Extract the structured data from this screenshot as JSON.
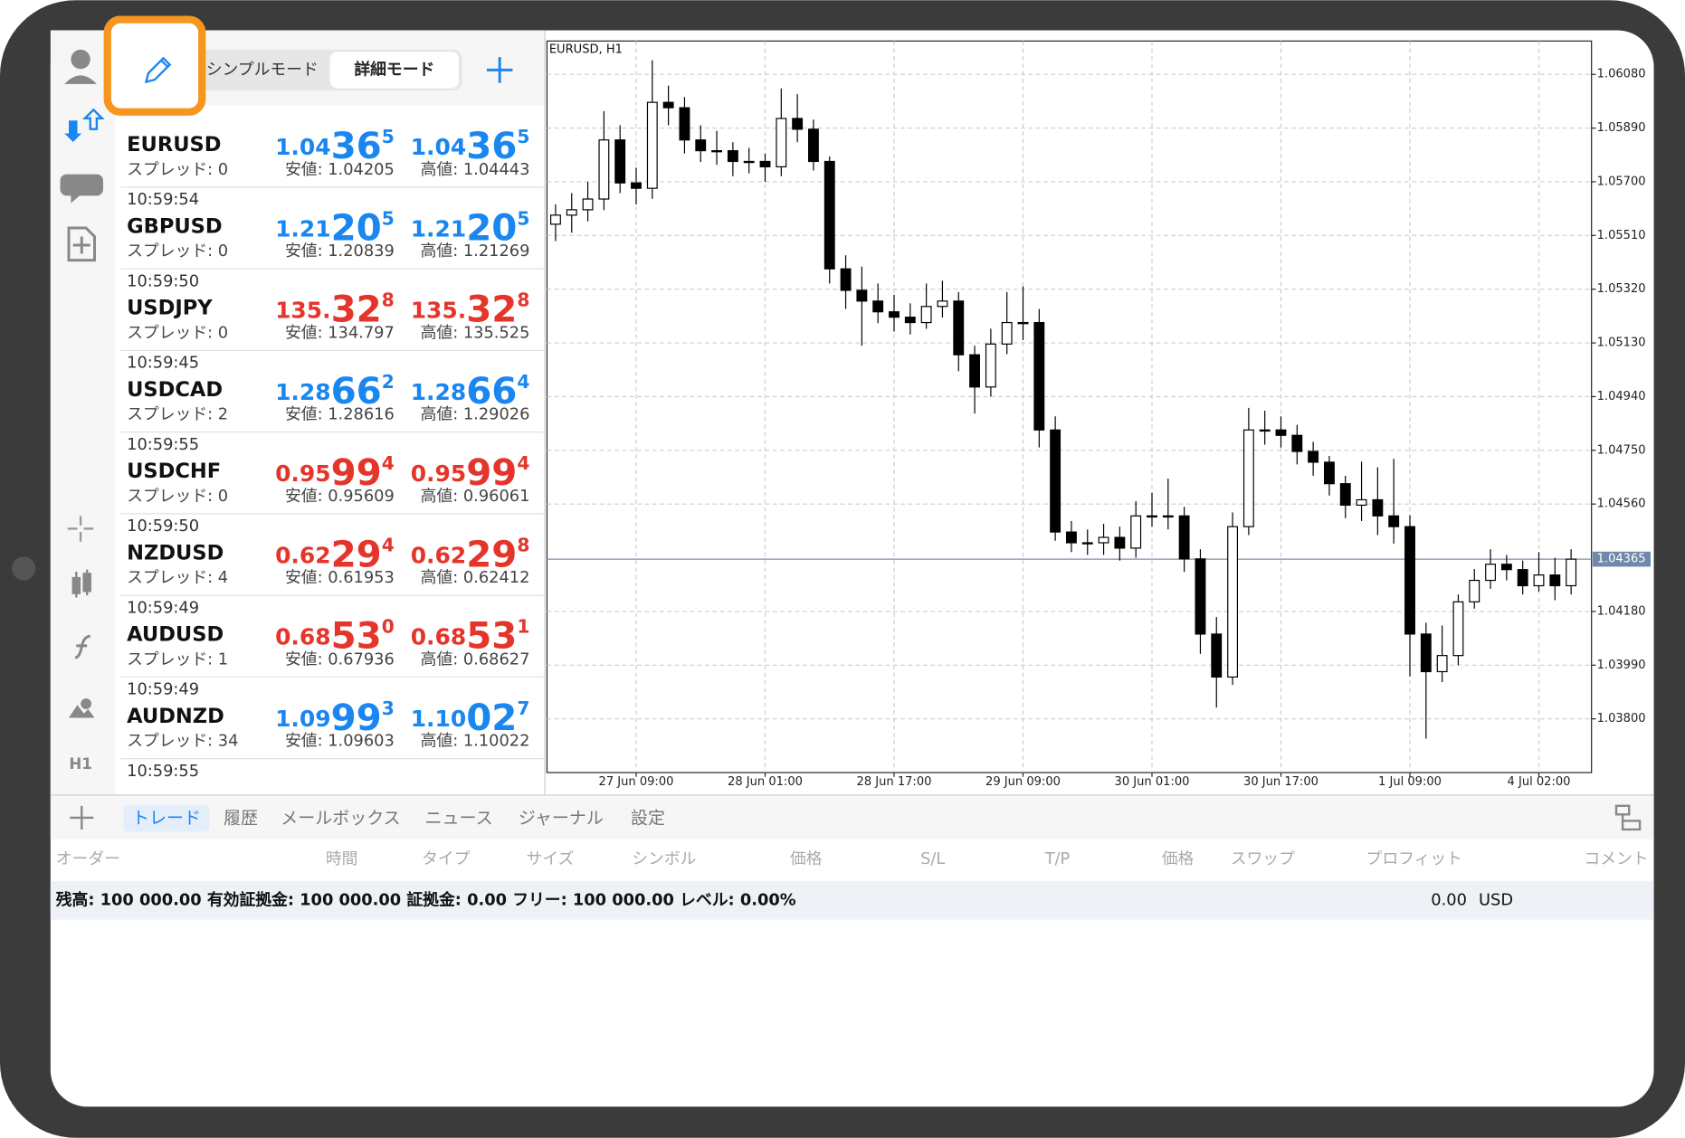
{
  "toolbar": {
    "modes": [
      "シンプルモード",
      "詳細モード"
    ]
  },
  "sidebar": {
    "timeframe": "H1"
  },
  "quotes": {
    "rows": [
      {
        "symbol": "EURUSD",
        "spread": "スプレッド: 0",
        "color": "#1a86f0",
        "bid": {
          "prefix": "1.04",
          "big": "36",
          "pip": "5"
        },
        "ask": {
          "prefix": "1.04",
          "big": "36",
          "pip": "5"
        },
        "low": "安値: 1.04205",
        "high": "高値: 1.04443"
      },
      {
        "time": "10:59:54",
        "symbol": "GBPUSD",
        "spread": "スプレッド: 0",
        "color": "#1a86f0",
        "bid": {
          "prefix": "1.21",
          "big": "20",
          "pip": "5"
        },
        "ask": {
          "prefix": "1.21",
          "big": "20",
          "pip": "5"
        },
        "low": "安値: 1.20839",
        "high": "高値: 1.21269"
      },
      {
        "time": "10:59:50",
        "symbol": "USDJPY",
        "spread": "スプレッド: 0",
        "color": "#e5352b",
        "bid": {
          "prefix": "135.",
          "big": "32",
          "pip": "8"
        },
        "ask": {
          "prefix": "135.",
          "big": "32",
          "pip": "8"
        },
        "low": "安値: 134.797",
        "high": "高値: 135.525"
      },
      {
        "time": "10:59:45",
        "symbol": "USDCAD",
        "spread": "スプレッド: 2",
        "color": "#1a86f0",
        "bid": {
          "prefix": "1.28",
          "big": "66",
          "pip": "2"
        },
        "ask": {
          "prefix": "1.28",
          "big": "66",
          "pip": "4"
        },
        "low": "安値: 1.28616",
        "high": "高値: 1.29026"
      },
      {
        "time": "10:59:55",
        "symbol": "USDCHF",
        "spread": "スプレッド: 0",
        "color": "#e5352b",
        "bid": {
          "prefix": "0.95",
          "big": "99",
          "pip": "4"
        },
        "ask": {
          "prefix": "0.95",
          "big": "99",
          "pip": "4"
        },
        "low": "安値: 0.95609",
        "high": "高値: 0.96061"
      },
      {
        "time": "10:59:50",
        "symbol": "NZDUSD",
        "spread": "スプレッド: 4",
        "color": "#e5352b",
        "bid": {
          "prefix": "0.62",
          "big": "29",
          "pip": "4"
        },
        "ask": {
          "prefix": "0.62",
          "big": "29",
          "pip": "8"
        },
        "low": "安値: 0.61953",
        "high": "高値: 0.62412"
      },
      {
        "time": "10:59:49",
        "symbol": "AUDUSD",
        "spread": "スプレッド: 1",
        "color": "#e5352b",
        "bid": {
          "prefix": "0.68",
          "big": "53",
          "pip": "0"
        },
        "ask": {
          "prefix": "0.68",
          "big": "53",
          "pip": "1"
        },
        "low": "安値: 0.67936",
        "high": "高値: 0.68627"
      },
      {
        "time": "10:59:49",
        "symbol": "AUDNZD",
        "spread": "スプレッド: 34",
        "color": "#1a86f0",
        "bid": {
          "prefix": "1.09",
          "big": "99",
          "pip": "3"
        },
        "ask": {
          "prefix": "1.10",
          "big": "02",
          "pip": "7"
        },
        "low": "安値: 1.09603",
        "high": "高値: 1.10022"
      },
      {
        "time": "10:59:55"
      }
    ]
  },
  "chart_data": {
    "type": "candlestick",
    "title": "EURUSD, H1",
    "up_color": "#ffffff",
    "down_color": "#000000",
    "grid": true,
    "ylim": [
      1.0361,
      1.06198
    ],
    "yticks": [
      {
        "value": 1.038,
        "label": "1.03800"
      },
      {
        "value": 1.0399,
        "label": "1.03990"
      },
      {
        "value": 1.0418,
        "label": "1.04180"
      },
      {
        "value": 1.0456,
        "label": "1.04560"
      },
      {
        "value": 1.0475,
        "label": "1.04750"
      },
      {
        "value": 1.0494,
        "label": "1.04940"
      },
      {
        "value": 1.0513,
        "label": "1.05130"
      },
      {
        "value": 1.0532,
        "label": "1.05320"
      },
      {
        "value": 1.0551,
        "label": "1.05510"
      },
      {
        "value": 1.057,
        "label": "1.05700"
      },
      {
        "value": 1.0589,
        "label": "1.05890"
      },
      {
        "value": 1.0608,
        "label": "1.06080"
      }
    ],
    "current_price": {
      "value": 1.04365,
      "label": "1.04365"
    },
    "categories": [
      null,
      null,
      null,
      null,
      null,
      "27 Jun 09:00",
      null,
      null,
      null,
      null,
      null,
      null,
      null,
      "28 Jun 01:00",
      null,
      null,
      null,
      null,
      null,
      null,
      null,
      "28 Jun 17:00",
      null,
      null,
      null,
      null,
      null,
      null,
      null,
      "29 Jun 09:00",
      null,
      null,
      null,
      null,
      null,
      null,
      null,
      "30 Jun 01:00",
      null,
      null,
      null,
      null,
      null,
      null,
      null,
      "30 Jun 17:00",
      null,
      null,
      null,
      null,
      null,
      null,
      null,
      "1 Jul 09:00",
      null,
      null,
      null,
      null,
      null,
      null,
      null,
      "4 Jul 02:00",
      null,
      null
    ],
    "ohlc": [
      [
        1.0555,
        1.0562,
        1.0549,
        1.05582
      ],
      [
        1.05582,
        1.0566,
        1.0552,
        1.05601
      ],
      [
        1.05601,
        1.057,
        1.0556,
        1.05639
      ],
      [
        1.05639,
        1.0595,
        1.056,
        1.05848
      ],
      [
        1.05848,
        1.059,
        1.0566,
        1.05696
      ],
      [
        1.05696,
        1.0575,
        1.0562,
        1.05677
      ],
      [
        1.05677,
        1.0613,
        1.0564,
        1.05981
      ],
      [
        1.05981,
        1.0604,
        1.059,
        1.05962
      ],
      [
        1.05962,
        1.06,
        1.058,
        1.05848
      ],
      [
        1.05848,
        1.059,
        1.0577,
        1.0581
      ],
      [
        1.0581,
        1.0588,
        1.0576,
        1.0581
      ],
      [
        1.0581,
        1.0584,
        1.0572,
        1.05772
      ],
      [
        1.05772,
        1.0582,
        1.0573,
        1.05772
      ],
      [
        1.05772,
        1.058,
        1.057,
        1.05753
      ],
      [
        1.05753,
        1.0603,
        1.0572,
        1.05924
      ],
      [
        1.05924,
        1.0601,
        1.0584,
        1.05886
      ],
      [
        1.05886,
        1.0592,
        1.0574,
        1.05772
      ],
      [
        1.05772,
        1.0579,
        1.0534,
        1.05392
      ],
      [
        1.05392,
        1.0544,
        1.0525,
        1.05316
      ],
      [
        1.05316,
        1.054,
        1.0512,
        1.05278
      ],
      [
        1.05278,
        1.0534,
        1.052,
        1.0524
      ],
      [
        1.0524,
        1.053,
        1.0517,
        1.05221
      ],
      [
        1.05221,
        1.0527,
        1.0516,
        1.05202
      ],
      [
        1.05202,
        1.0534,
        1.0518,
        1.05259
      ],
      [
        1.05259,
        1.0535,
        1.0522,
        1.05278
      ],
      [
        1.05278,
        1.0531,
        1.0503,
        1.05088
      ],
      [
        1.05088,
        1.0512,
        1.0488,
        1.04974
      ],
      [
        1.04974,
        1.0518,
        1.0494,
        1.05126
      ],
      [
        1.05126,
        1.0531,
        1.0509,
        1.05202
      ],
      [
        1.05202,
        1.0533,
        1.0514,
        1.05202
      ],
      [
        1.05202,
        1.0525,
        1.0476,
        1.04822
      ],
      [
        1.04822,
        1.0487,
        1.0443,
        1.04461
      ],
      [
        1.04461,
        1.045,
        1.0439,
        1.04423
      ],
      [
        1.04423,
        1.0447,
        1.0438,
        1.04423
      ],
      [
        1.04423,
        1.0449,
        1.0438,
        1.04442
      ],
      [
        1.04442,
        1.0448,
        1.0436,
        1.04404
      ],
      [
        1.04404,
        1.0457,
        1.0437,
        1.04518
      ],
      [
        1.04518,
        1.046,
        1.0448,
        1.04518
      ],
      [
        1.04518,
        1.0465,
        1.0447,
        1.04518
      ],
      [
        1.04518,
        1.0455,
        1.0432,
        1.04366
      ],
      [
        1.04366,
        1.044,
        1.0403,
        1.041
      ],
      [
        1.041,
        1.0416,
        1.0384,
        1.03948
      ],
      [
        1.03948,
        1.0453,
        1.0392,
        1.0448
      ],
      [
        1.0448,
        1.049,
        1.0445,
        1.04822
      ],
      [
        1.04822,
        1.0489,
        1.0477,
        1.04822
      ],
      [
        1.04822,
        1.0487,
        1.0476,
        1.04803
      ],
      [
        1.04803,
        1.0484,
        1.047,
        1.04746
      ],
      [
        1.04746,
        1.0478,
        1.0466,
        1.04708
      ],
      [
        1.04708,
        1.0473,
        1.0459,
        1.04632
      ],
      [
        1.04632,
        1.0466,
        1.0451,
        1.04556
      ],
      [
        1.04556,
        1.0471,
        1.045,
        1.04575
      ],
      [
        1.04575,
        1.0469,
        1.0445,
        1.04518
      ],
      [
        1.04518,
        1.0472,
        1.0442,
        1.0448
      ],
      [
        1.0448,
        1.0452,
        1.0395,
        1.041
      ],
      [
        1.041,
        1.0414,
        1.0373,
        1.03967
      ],
      [
        1.03967,
        1.0413,
        1.0393,
        1.04024
      ],
      [
        1.04024,
        1.0424,
        1.0399,
        1.04214
      ],
      [
        1.04214,
        1.0433,
        1.0419,
        1.0429
      ],
      [
        1.0429,
        1.044,
        1.0426,
        1.04347
      ],
      [
        1.04347,
        1.0438,
        1.0429,
        1.04328
      ],
      [
        1.04328,
        1.0436,
        1.0424,
        1.04271
      ],
      [
        1.04271,
        1.0439,
        1.0425,
        1.04309
      ],
      [
        1.04309,
        1.0437,
        1.0422,
        1.04271
      ],
      [
        1.04271,
        1.044,
        1.0424,
        1.04365
      ]
    ]
  },
  "terminal": {
    "tabs": [
      "トレード",
      "履歴",
      "メールボックス",
      "ニュース",
      "ジャーナル",
      "設定"
    ],
    "columns": [
      "オーダー",
      "時間",
      "タイプ",
      "サイズ",
      "シンボル",
      "価格",
      "S/L",
      "T/P",
      "価格",
      "スワップ",
      "プロフィット",
      "コメント"
    ],
    "summary": "残高: 100 000.00 有効証拠金: 100 000.00 証拠金: 0.00 フリー: 100 000.00 レベル: 0.00%",
    "profit": "0.00",
    "currency": "USD"
  }
}
